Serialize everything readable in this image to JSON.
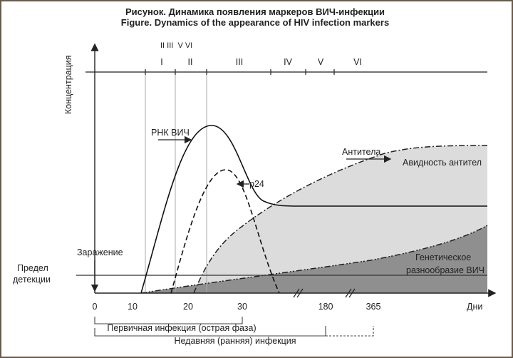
{
  "title_ru": "Рисунок. Динамика появления маркеров ВИЧ-инфекции",
  "title_en": "Figure. Dynamics of the appearance of HIV infection markers",
  "y_axis_label": "Концентрация",
  "x_axis_label": "Дни",
  "x_ticks": [
    "0",
    "10",
    "20",
    "30",
    "180",
    "365"
  ],
  "stages_top": "II III  V VI",
  "stages": [
    "I",
    "II",
    "III",
    "IV",
    "V",
    "VI"
  ],
  "labels": {
    "rna": "РНК ВИЧ",
    "p24": "p24",
    "antibodies": "Антитела",
    "avidity": "Авидность антител",
    "genetic1": "Генетическое",
    "genetic2": "разнообразие ВИЧ",
    "infection": "Заражение",
    "detection1": "Предел",
    "detection2": "детекции"
  },
  "brackets": {
    "primary": "Первичная инфекция (острая фаза)",
    "recent": "Недавняя (ранняя) инфекция"
  },
  "colors": {
    "light_area": "#dcdcdc",
    "dark_area": "#8f8f8f",
    "line": "#222222",
    "frame": "#6b5a4a"
  }
}
